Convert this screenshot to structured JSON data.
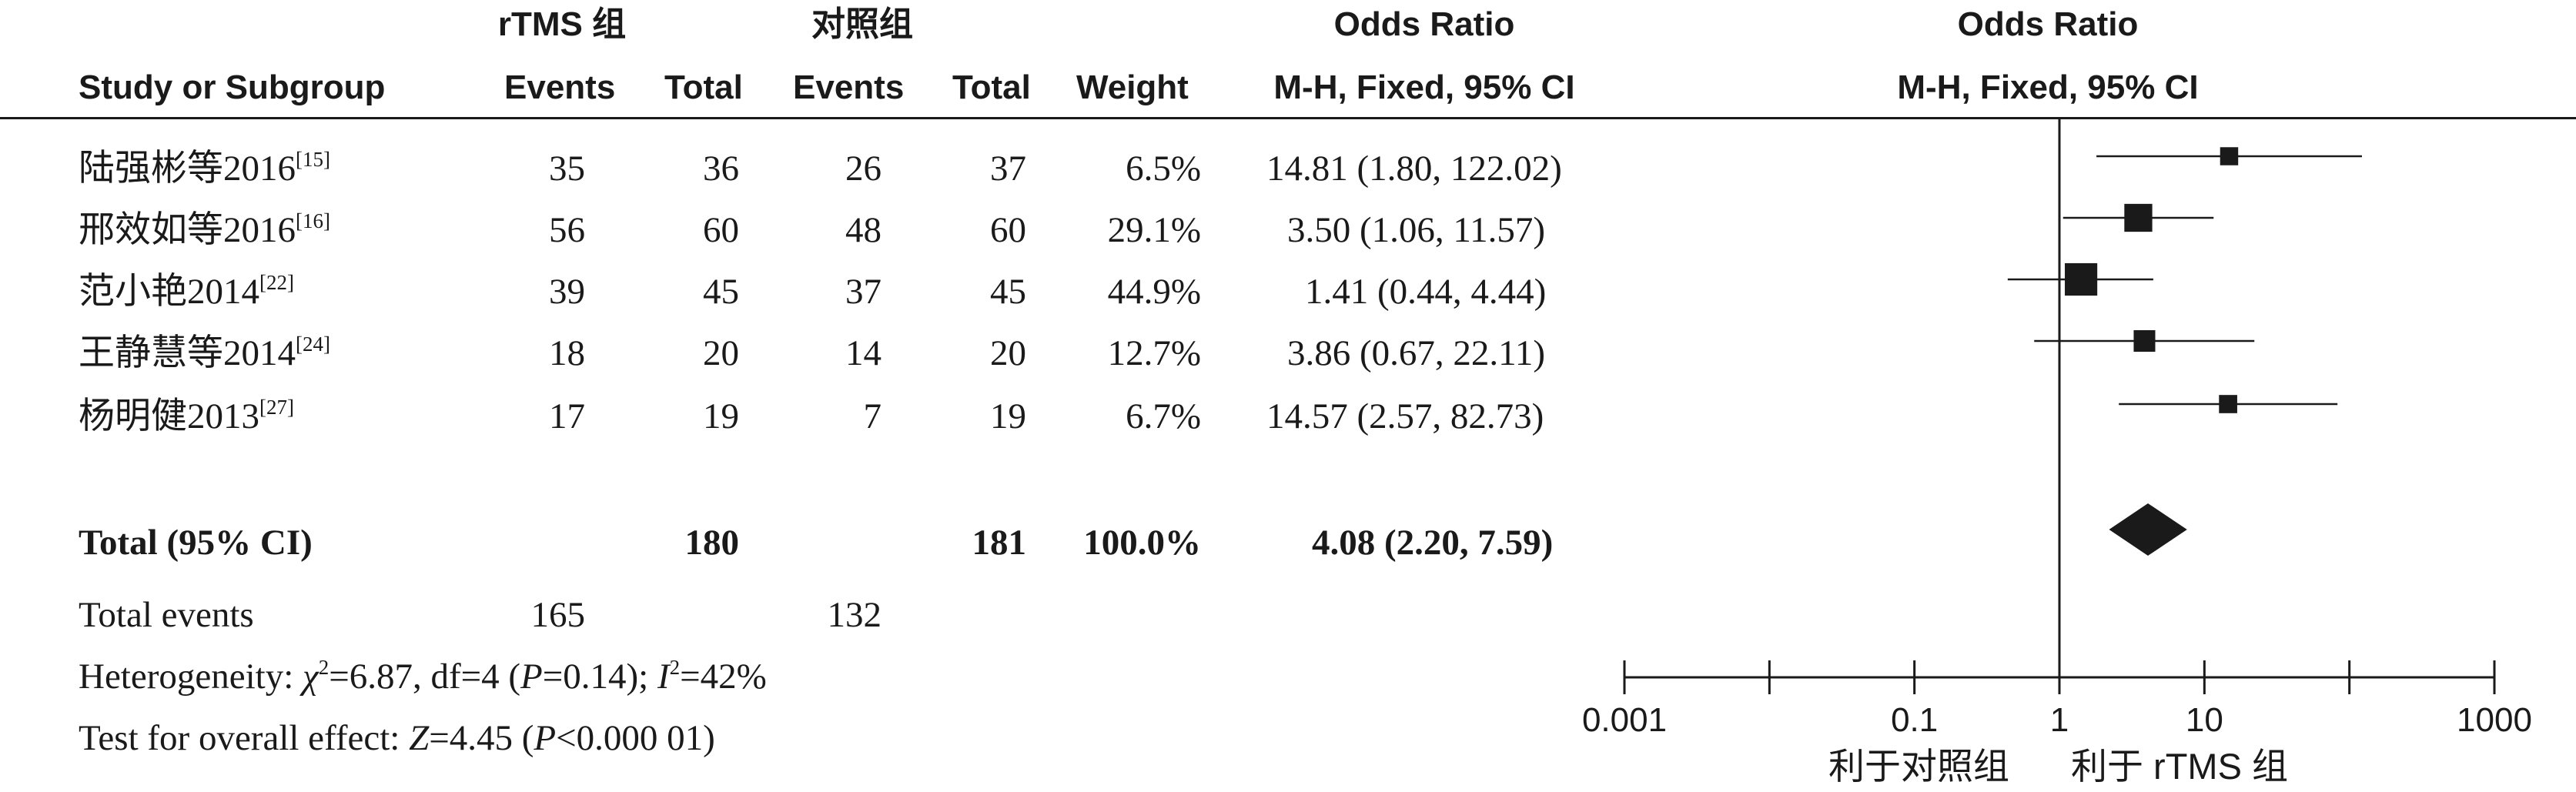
{
  "header": {
    "group_exp": "rTMS 组",
    "group_ctrl": "对照组",
    "or_col_title": "Odds Ratio",
    "or_col_method": "M-H, Fixed, 95% CI",
    "plot_title": "Odds Ratio",
    "plot_method": "M-H, Fixed, 95% CI",
    "study_col": "Study or Subgroup",
    "events_exp": "Events",
    "total_exp": "Total",
    "events_ctrl": "Events",
    "total_ctrl": "Total",
    "weight": "Weight"
  },
  "studies": [
    {
      "name": "陆强彬等2016",
      "ref": "[15]",
      "events_exp": "35",
      "total_exp": "36",
      "events_ctrl": "26",
      "total_ctrl": "37",
      "weight": "6.5%",
      "or_text": "14.81 (1.80, 122.02)"
    },
    {
      "name": "邢效如等2016",
      "ref": "[16]",
      "events_exp": "56",
      "total_exp": "60",
      "events_ctrl": "48",
      "total_ctrl": "60",
      "weight": "29.1%",
      "or_text": "3.50 (1.06, 11.57)"
    },
    {
      "name": "范小艳2014",
      "ref": "[22]",
      "events_exp": "39",
      "total_exp": "45",
      "events_ctrl": "37",
      "total_ctrl": "45",
      "weight": "44.9%",
      "or_text": "1.41 (0.44, 4.44)"
    },
    {
      "name": "王静慧等2014",
      "ref": "[24]",
      "events_exp": "18",
      "total_exp": "20",
      "events_ctrl": "14",
      "total_ctrl": "20",
      "weight": "12.7%",
      "or_text": "3.86 (0.67, 22.11)"
    },
    {
      "name": "杨明健2013",
      "ref": "[27]",
      "events_exp": "17",
      "total_exp": "19",
      "events_ctrl": "7",
      "total_ctrl": "19",
      "weight": "6.7%",
      "or_text": "14.57 (2.57, 82.73)"
    }
  ],
  "total": {
    "label": "Total (95% CI)",
    "total_exp": "180",
    "total_ctrl": "181",
    "weight": "100.0%",
    "or_text": "4.08 (2.20, 7.59)"
  },
  "total_events": {
    "label": "Total events",
    "exp": "165",
    "ctrl": "132"
  },
  "heterogeneity": {
    "prefix": "Heterogeneity: ",
    "chi": "χ",
    "chi_sq_value": "=6.87, df=4 (",
    "p": "P",
    "p_value": "=0.14); ",
    "i": "I",
    "i_sq_value": "=42%",
    "sup2": "2"
  },
  "overall": {
    "prefix": "Test for overall effect: ",
    "z": "Z",
    "z_value": "=4.45 (",
    "p": "P",
    "p_value": "<0.000 01)"
  },
  "axis": {
    "ticks": [
      "0.001",
      "0.1",
      "1",
      "10",
      "1000"
    ],
    "favours_left": "利于对照组",
    "favours_right": "利于 rTMS 组"
  },
  "chart_data": {
    "type": "forest",
    "scale": "log",
    "xlim": [
      0.001,
      1000
    ],
    "x_ticks": [
      0.001,
      0.01,
      0.1,
      1,
      10,
      100,
      1000
    ],
    "x_tick_labels": [
      "0.001",
      "0.1",
      "1",
      "10",
      "1000"
    ],
    "reference_line": 1,
    "studies": [
      {
        "or": 14.81,
        "lo": 1.8,
        "hi": 122.02,
        "weight": 6.5
      },
      {
        "or": 3.5,
        "lo": 1.06,
        "hi": 11.57,
        "weight": 29.1
      },
      {
        "or": 1.41,
        "lo": 0.44,
        "hi": 4.44,
        "weight": 44.9
      },
      {
        "or": 3.86,
        "lo": 0.67,
        "hi": 22.11,
        "weight": 12.7
      },
      {
        "or": 14.57,
        "lo": 2.57,
        "hi": 82.73,
        "weight": 6.7
      }
    ],
    "pooled": {
      "or": 4.08,
      "lo": 2.2,
      "hi": 7.59
    }
  }
}
